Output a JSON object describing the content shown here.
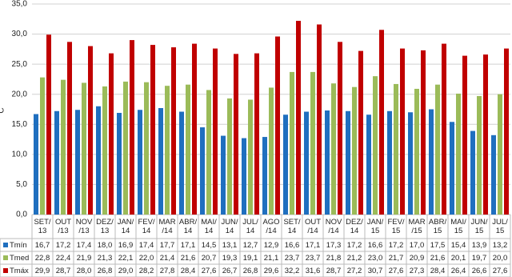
{
  "chart_data": {
    "type": "bar",
    "y_label": "°C",
    "categories": [
      "SET/\n13",
      "OUT\n/13",
      "NOV\n/13",
      "DEZ/\n13",
      "JAN/\n14",
      "FEV/\n14",
      "MAR\n/14",
      "ABR/\n14",
      "MAI/\n14",
      "JUN/\n14",
      "JUL/\n14",
      "AGO\n/14",
      "SET/\n14",
      "OUT\n/14",
      "NOV\n/14",
      "DEZ/\n14",
      "JAN/\n15",
      "FEV/\n15",
      "MAR\n/15",
      "ABR/\n15",
      "MAI/\n15",
      "JUN/\n15",
      "JUL/\n15"
    ],
    "series": [
      {
        "name": "Tmín",
        "color": "#1f6fbf",
        "values": [
          16.7,
          17.2,
          17.4,
          18.0,
          16.9,
          17.4,
          17.7,
          17.1,
          14.5,
          13.1,
          12.7,
          12.9,
          16.6,
          17.1,
          17.3,
          17.2,
          16.6,
          17.2,
          17.0,
          17.5,
          15.4,
          13.9,
          13.2
        ],
        "value_labels": [
          "16,7",
          "17,2",
          "17,4",
          "18,0",
          "16,9",
          "17,4",
          "17,7",
          "17,1",
          "14,5",
          "13,1",
          "12,7",
          "12,9",
          "16,6",
          "17,1",
          "17,3",
          "17,2",
          "16,6",
          "17,2",
          "17,0",
          "17,5",
          "15,4",
          "13,9",
          "13,2"
        ]
      },
      {
        "name": "Tmed",
        "color": "#9bbb59",
        "values": [
          22.8,
          22.4,
          21.9,
          21.3,
          22.1,
          22.0,
          21.4,
          21.6,
          20.7,
          19.3,
          19.1,
          21.1,
          23.7,
          23.7,
          21.8,
          21.2,
          23.0,
          21.7,
          20.9,
          21.6,
          20.1,
          19.7,
          20.0
        ],
        "value_labels": [
          "22,8",
          "22,4",
          "21,9",
          "21,3",
          "22,1",
          "22,0",
          "21,4",
          "21,6",
          "20,7",
          "19,3",
          "19,1",
          "21,1",
          "23,7",
          "23,7",
          "21,8",
          "21,2",
          "23,0",
          "21,7",
          "20,9",
          "21,6",
          "20,1",
          "19,7",
          "20,0"
        ]
      },
      {
        "name": "Tmáx",
        "color": "#c00000",
        "values": [
          29.9,
          28.7,
          28.0,
          26.8,
          29.0,
          28.2,
          27.8,
          28.4,
          27.6,
          26.7,
          26.8,
          29.6,
          32.2,
          31.6,
          28.7,
          27.2,
          30.7,
          27.6,
          27.3,
          28.4,
          26.4,
          26.6,
          27.6
        ],
        "value_labels": [
          "29,9",
          "28,7",
          "28,0",
          "26,8",
          "29,0",
          "28,2",
          "27,8",
          "28,4",
          "27,6",
          "26,7",
          "26,8",
          "29,6",
          "32,2",
          "31,6",
          "28,7",
          "27,2",
          "30,7",
          "27,6",
          "27,3",
          "28,4",
          "26,4",
          "26,6",
          "27,6"
        ]
      }
    ],
    "ylim": [
      0,
      35
    ],
    "yticks": [
      {
        "value": 0,
        "label": "0,0"
      },
      {
        "value": 5,
        "label": "5,0"
      },
      {
        "value": 10,
        "label": "10,0"
      },
      {
        "value": 15,
        "label": "15,0"
      },
      {
        "value": 20,
        "label": "20,0"
      },
      {
        "value": 25,
        "label": "25,0"
      },
      {
        "value": 30,
        "label": "30,0"
      },
      {
        "value": 35,
        "label": "35,0"
      }
    ],
    "grid": true
  }
}
